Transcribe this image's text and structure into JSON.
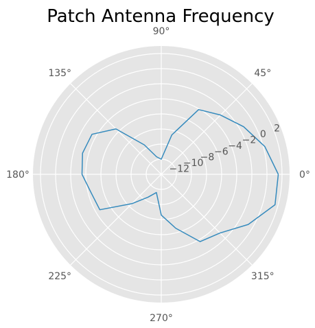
{
  "chart_data": {
    "type": "line",
    "title": "Patch Antenna Frequency",
    "projection": "polar",
    "theta_unit": "degrees",
    "rlim": [
      -14,
      3
    ],
    "grid": true,
    "theta_ticks": [
      {
        "angle": 0,
        "label": "0°"
      },
      {
        "angle": 45,
        "label": "45°"
      },
      {
        "angle": 90,
        "label": "90°"
      },
      {
        "angle": 135,
        "label": "135°"
      },
      {
        "angle": 180,
        "label": "180°"
      },
      {
        "angle": 225,
        "label": "225°"
      },
      {
        "angle": 270,
        "label": "270°"
      },
      {
        "angle": 315,
        "label": "315°"
      }
    ],
    "r_ticks": [
      {
        "value": -12,
        "label": "−12"
      },
      {
        "value": -10,
        "label": "−10"
      },
      {
        "value": -8,
        "label": "−8"
      },
      {
        "value": -6,
        "label": "−6"
      },
      {
        "value": -4,
        "label": "−4"
      },
      {
        "value": -2,
        "label": "−2"
      },
      {
        "value": 0,
        "label": "0"
      },
      {
        "value": 2,
        "label": "2"
      }
    ],
    "series": [
      {
        "color": "#348abd",
        "theta": [
          0,
          15,
          30,
          45,
          60,
          75,
          90,
          105,
          120,
          135,
          150,
          165,
          180,
          195,
          210,
          225,
          240,
          255,
          270,
          285,
          300,
          315,
          330,
          345,
          360
        ],
        "r": [
          1.5,
          0.2,
          -1.4,
          -2.9,
          -4.1,
          -8.6,
          -12.0,
          -11.6,
          -9.5,
          -5.5,
          -3.4,
          -3.2,
          -3.5,
          -4.4,
          -4.6,
          -8.5,
          -10.5,
          -11.5,
          -8.6,
          -6.6,
          -3.7,
          -3.0,
          -0.7,
          1.6,
          1.5
        ]
      }
    ]
  }
}
